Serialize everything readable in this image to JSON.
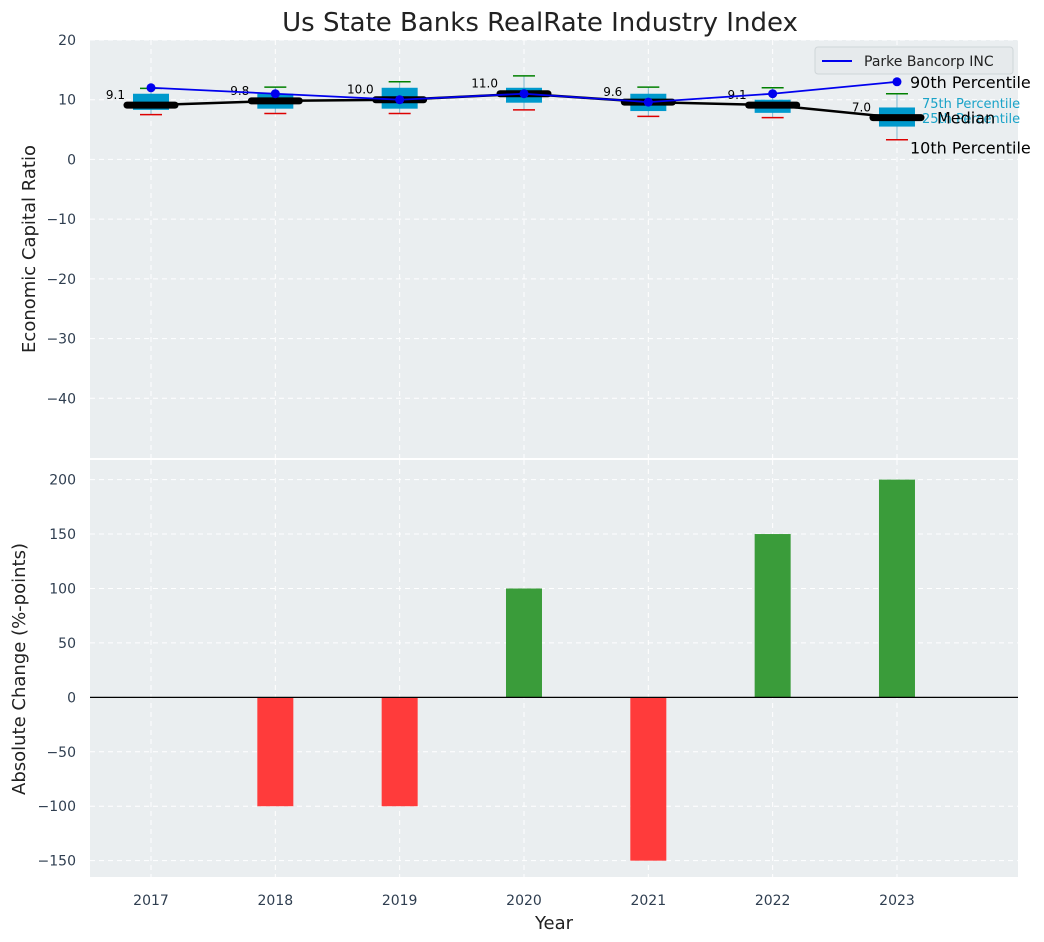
{
  "chart_data": [
    {
      "type": "box",
      "title": "Us State Banks RealRate Industry Index",
      "ylabel": "Economic Capital Ratio",
      "ylim": [
        -50,
        20
      ],
      "yticks": [
        20,
        10,
        0,
        -10,
        -20,
        -30,
        -40
      ],
      "years": [
        "2017",
        "2018",
        "2019",
        "2020",
        "2021",
        "2022",
        "2023"
      ],
      "p10": [
        7.5,
        7.7,
        7.7,
        8.3,
        7.2,
        7.0,
        3.3
      ],
      "p25": [
        8.3,
        8.5,
        8.5,
        9.5,
        8.1,
        7.8,
        5.5
      ],
      "median": [
        9.1,
        9.8,
        10.0,
        11.0,
        9.6,
        9.1,
        7.0
      ],
      "p75": [
        11.0,
        11.0,
        12.0,
        12.0,
        11.0,
        10.0,
        8.7
      ],
      "p90": [
        11.9,
        12.1,
        13.0,
        14.0,
        12.1,
        12.0,
        11.0
      ],
      "median_labels": [
        "9.1",
        "9.8",
        "10.0",
        "11.0",
        "9.6",
        "9.1",
        "7.0"
      ],
      "company": {
        "name": "Parke Bancorp INC",
        "values": [
          12.0,
          11.0,
          10.0,
          11.0,
          9.6,
          11.0,
          13.0
        ],
        "color": "#0000ee"
      },
      "annotations": {
        "p90": "90th Percentile",
        "p75": "75th Percentile",
        "median": "Median",
        "p25": "25th Percentile",
        "p10": "10th Percentile"
      },
      "colors": {
        "box": "#0099cc",
        "median_line": "#000000",
        "whisker_top": "#008000",
        "whisker_bottom": "#dd0000"
      }
    },
    {
      "type": "bar",
      "ylabel": "Absolute Change (%-points)",
      "xlabel": "Year",
      "ylim": [
        -165,
        218
      ],
      "yticks": [
        200,
        150,
        100,
        50,
        0,
        -50,
        -100,
        -150
      ],
      "categories": [
        "2017",
        "2018",
        "2019",
        "2020",
        "2021",
        "2022",
        "2023"
      ],
      "values": [
        0,
        -100,
        -100,
        100,
        -150,
        150,
        200
      ],
      "colors": {
        "positive": "#3a9c3a",
        "negative": "#ff3b3b"
      }
    }
  ]
}
